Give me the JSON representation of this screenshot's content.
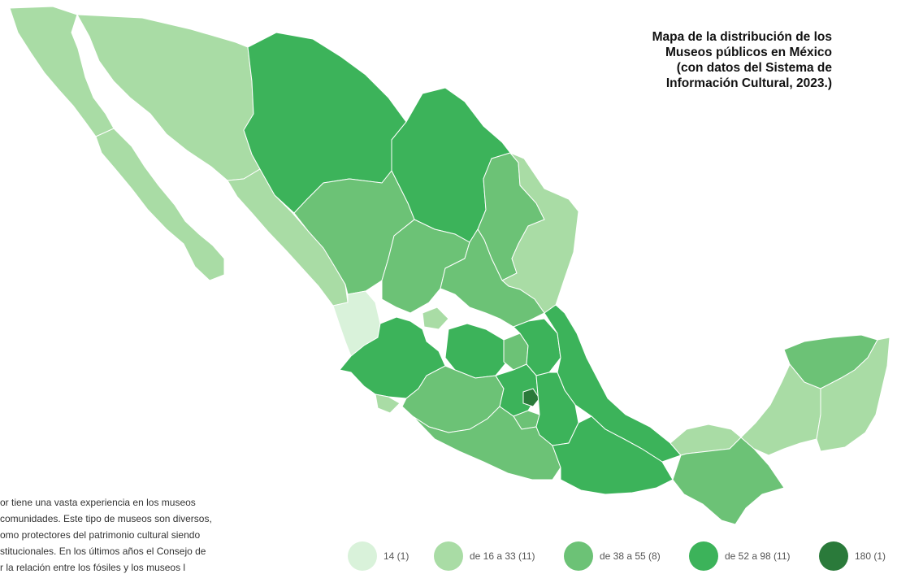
{
  "title": "Mapa de la distribución de los\nMuseos públicos en México\n(con datos del Sistema de\nInformación Cultural, 2023.)",
  "body_lines": [
    "or tiene una vasta experiencia en los museos",
    "comunidades. Este tipo de museos son diversos,",
    "omo protectores del patrimonio cultural siendo",
    "stitucionales. En los últimos años el Consejo de",
    "r la relación entre los fósiles y los museos l"
  ],
  "colors": {
    "c1": "#d9f2da",
    "c2": "#a9dca5",
    "c3": "#6cc276",
    "c4": "#3cb35a",
    "c5": "#2a7a3a"
  },
  "legend": [
    {
      "label": "14 (1)",
      "color": "#d9f2da"
    },
    {
      "label": "de 16 a 33 (11)",
      "color": "#a9dca5"
    },
    {
      "label": "de 38 a 55 (8)",
      "color": "#6cc276"
    },
    {
      "label": "de 52 a 98 (11)",
      "color": "#3cb35a"
    },
    {
      "label": "180 (1)",
      "color": "#2a7a3a"
    }
  ]
}
